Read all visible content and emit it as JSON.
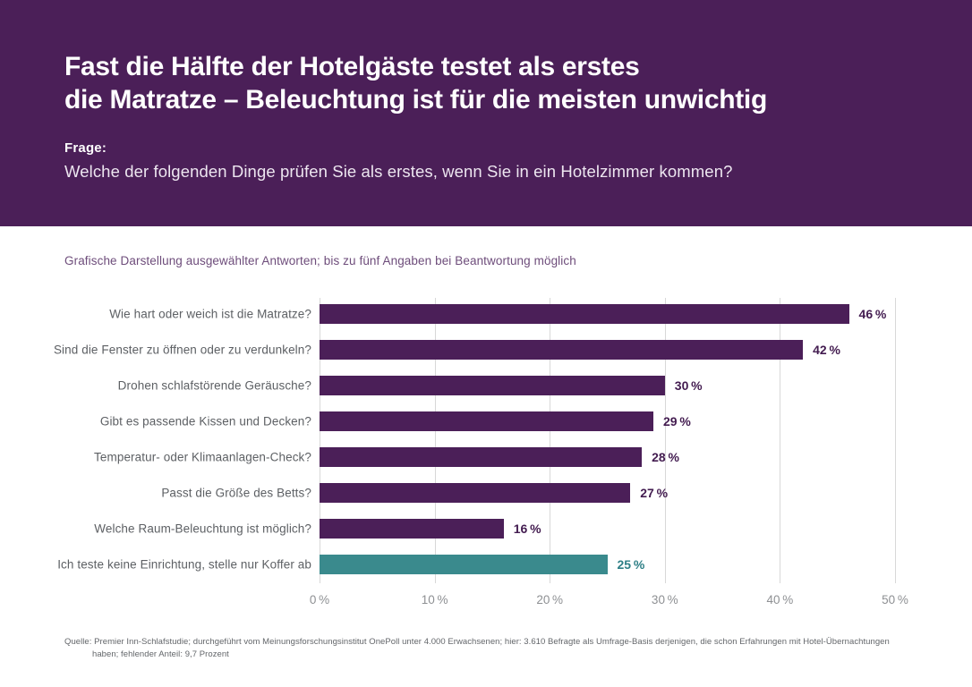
{
  "header": {
    "title_line1": "Fast die Hälfte der Hotelgäste testet als erstes",
    "title_line2": "die Matratze – Beleuchtung ist für die meisten unwichtig",
    "question_label": "Frage:",
    "question": "Welche der folgenden Dinge prüfen Sie als erstes, wenn Sie in ein Hotelzimmer kommen?"
  },
  "subtitle": "Grafische Darstellung ausgewählter Antworten; bis zu fünf Angaben bei Beantwortung möglich",
  "chart_data": {
    "type": "bar",
    "orientation": "horizontal",
    "categories": [
      "Wie hart oder weich ist die Matratze?",
      "Sind die Fenster zu öffnen oder zu verdunkeln?",
      "Drohen schlafstörende Geräusche?",
      "Gibt es passende Kissen und Decken?",
      "Temperatur- oder Klimaanlagen-Check?",
      "Passt die Größe des Betts?",
      "Welche Raum-Beleuchtung ist möglich?",
      "Ich teste keine Einrichtung, stelle nur Koffer ab"
    ],
    "values": [
      46,
      42,
      30,
      29,
      28,
      27,
      16,
      25
    ],
    "value_labels": [
      "46 %",
      "42 %",
      "30 %",
      "29 %",
      "28 %",
      "27 %",
      "16 %",
      "25 %"
    ],
    "bar_colors": [
      "#4B1F58",
      "#4B1F58",
      "#4B1F58",
      "#4B1F58",
      "#4B1F58",
      "#4B1F58",
      "#4B1F58",
      "#3A8A8D"
    ],
    "value_label_colors": [
      "#431C50",
      "#431C50",
      "#431C50",
      "#431C50",
      "#431C50",
      "#431C50",
      "#431C50",
      "#2E7F86"
    ],
    "x_ticks": [
      0,
      10,
      20,
      30,
      40,
      50
    ],
    "x_tick_labels": [
      "0 %",
      "10 %",
      "20 %",
      "30 %",
      "40 %",
      "50 %"
    ],
    "xlim": [
      0,
      50
    ],
    "grid": true,
    "legend": false,
    "title": "",
    "xlabel": "",
    "ylabel": ""
  },
  "footer": {
    "line1": "Quelle: Premier Inn-Schlafstudie; durchgeführt vom Meinungsforschungsinstitut OnePoll unter 4.000 Erwachsenen; hier: 3.610 Befragte als Umfrage-Basis derjenigen, die schon Erfahrungen mit Hotel-Übernachtungen",
    "line2": "haben; fehlender Anteil: 9,7 Prozent"
  },
  "colors": {
    "header_bg": "#4B1F58",
    "bar_purple": "#4B1F58",
    "bar_teal": "#3A8A8D",
    "subtitle_text": "#6E4D7B",
    "category_text": "#5D6064",
    "axis_text": "#8E9093",
    "gridline": "#D8D8D8",
    "footer_text": "#63666A"
  }
}
